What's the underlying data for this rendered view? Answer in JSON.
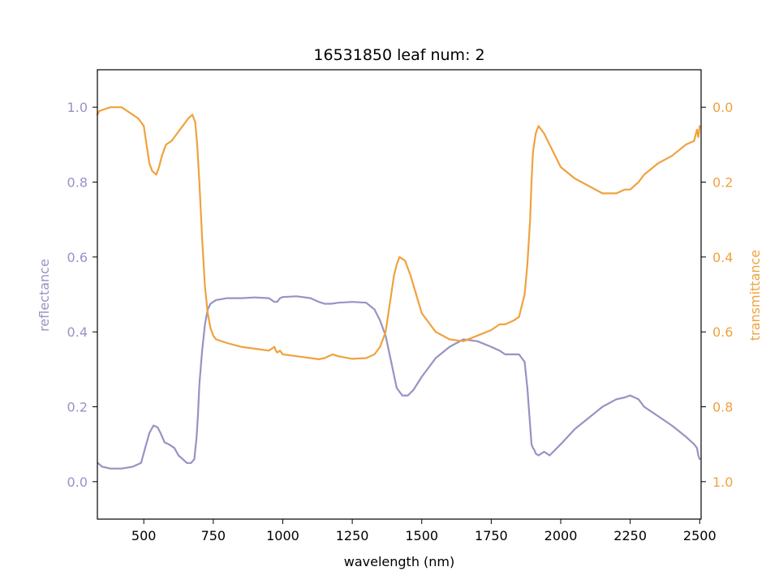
{
  "chart_data": {
    "type": "line",
    "title": "16531850 leaf num: 2",
    "xlabel": "wavelength (nm)",
    "ylabel_left": "reflectance",
    "ylabel_right": "transmittance",
    "xlim": [
      333,
      2505
    ],
    "ylim_left": [
      -0.1,
      1.1
    ],
    "ylim_right": [
      1.1,
      -0.1
    ],
    "right_axis_inverted": true,
    "x_ticks": [
      "500",
      "750",
      "1000",
      "1250",
      "1500",
      "1750",
      "2000",
      "2250",
      "2500"
    ],
    "y_left_ticks": [
      "0.0",
      "0.2",
      "0.4",
      "0.6",
      "0.8",
      "1.0"
    ],
    "y_right_ticks": [
      "0.0",
      "0.2",
      "0.4",
      "0.6",
      "0.8",
      "1.0"
    ],
    "grid": false,
    "colors": {
      "reflectance": "#9892c4",
      "transmittance": "#f0a23d"
    },
    "series": [
      {
        "axis": "left",
        "color": "#9892c4",
        "x": [
          335,
          350,
          380,
          420,
          460,
          490,
          505,
          520,
          535,
          550,
          560,
          575,
          590,
          610,
          625,
          640,
          655,
          670,
          682,
          690,
          695,
          700,
          710,
          720,
          730,
          740,
          750,
          760,
          800,
          850,
          900,
          950,
          970,
          980,
          990,
          1000,
          1050,
          1100,
          1130,
          1150,
          1175,
          1200,
          1250,
          1300,
          1330,
          1350,
          1370,
          1390,
          1410,
          1430,
          1450,
          1470,
          1500,
          1550,
          1600,
          1650,
          1700,
          1750,
          1780,
          1800,
          1850,
          1870,
          1880,
          1890,
          1895,
          1900,
          1905,
          1910,
          1920,
          1940,
          1960,
          2000,
          2050,
          2100,
          2150,
          2200,
          2230,
          2250,
          2280,
          2300,
          2350,
          2400,
          2450,
          2480,
          2490,
          2495,
          2500
        ],
        "y": [
          0.05,
          0.04,
          0.035,
          0.035,
          0.04,
          0.05,
          0.09,
          0.13,
          0.15,
          0.145,
          0.13,
          0.105,
          0.1,
          0.09,
          0.07,
          0.06,
          0.05,
          0.05,
          0.06,
          0.12,
          0.18,
          0.26,
          0.35,
          0.42,
          0.46,
          0.475,
          0.48,
          0.485,
          0.49,
          0.49,
          0.492,
          0.49,
          0.48,
          0.48,
          0.49,
          0.493,
          0.495,
          0.49,
          0.48,
          0.475,
          0.475,
          0.478,
          0.48,
          0.478,
          0.46,
          0.43,
          0.39,
          0.32,
          0.25,
          0.23,
          0.23,
          0.245,
          0.28,
          0.33,
          0.36,
          0.38,
          0.375,
          0.36,
          0.35,
          0.34,
          0.34,
          0.32,
          0.25,
          0.15,
          0.1,
          0.09,
          0.085,
          0.075,
          0.07,
          0.08,
          0.07,
          0.1,
          0.14,
          0.17,
          0.2,
          0.22,
          0.225,
          0.23,
          0.22,
          0.2,
          0.175,
          0.15,
          0.12,
          0.1,
          0.09,
          0.07,
          0.06
        ]
      },
      {
        "axis": "right",
        "color": "#f0a23d",
        "x": [
          333,
          340,
          360,
          380,
          400,
          420,
          440,
          460,
          480,
          500,
          510,
          520,
          530,
          545,
          555,
          565,
          580,
          600,
          620,
          640,
          660,
          675,
          685,
          692,
          700,
          710,
          720,
          730,
          740,
          750,
          760,
          800,
          850,
          900,
          950,
          970,
          975,
          980,
          990,
          1000,
          1050,
          1100,
          1130,
          1150,
          1180,
          1200,
          1250,
          1300,
          1330,
          1350,
          1370,
          1390,
          1400,
          1410,
          1420,
          1440,
          1460,
          1480,
          1500,
          1550,
          1600,
          1650,
          1700,
          1750,
          1780,
          1800,
          1830,
          1850,
          1870,
          1880,
          1890,
          1895,
          1900,
          1910,
          1920,
          1940,
          1960,
          1980,
          2000,
          2050,
          2100,
          2150,
          2200,
          2230,
          2250,
          2280,
          2300,
          2350,
          2400,
          2450,
          2480,
          2490,
          2495,
          2500
        ],
        "y": [
          0.02,
          0.01,
          0.005,
          0.0,
          0.0,
          0.0,
          0.01,
          0.02,
          0.03,
          0.05,
          0.1,
          0.15,
          0.17,
          0.18,
          0.16,
          0.13,
          0.1,
          0.09,
          0.07,
          0.05,
          0.03,
          0.02,
          0.04,
          0.1,
          0.2,
          0.35,
          0.48,
          0.55,
          0.59,
          0.61,
          0.62,
          0.63,
          0.64,
          0.645,
          0.65,
          0.64,
          0.65,
          0.655,
          0.65,
          0.66,
          0.665,
          0.67,
          0.673,
          0.67,
          0.66,
          0.665,
          0.672,
          0.67,
          0.66,
          0.64,
          0.6,
          0.5,
          0.45,
          0.42,
          0.4,
          0.41,
          0.45,
          0.5,
          0.55,
          0.6,
          0.62,
          0.625,
          0.61,
          0.595,
          0.58,
          0.58,
          0.57,
          0.56,
          0.5,
          0.42,
          0.3,
          0.2,
          0.12,
          0.07,
          0.05,
          0.07,
          0.1,
          0.13,
          0.16,
          0.19,
          0.21,
          0.23,
          0.23,
          0.22,
          0.22,
          0.2,
          0.18,
          0.15,
          0.13,
          0.1,
          0.09,
          0.06,
          0.08,
          0.05
        ]
      }
    ]
  }
}
